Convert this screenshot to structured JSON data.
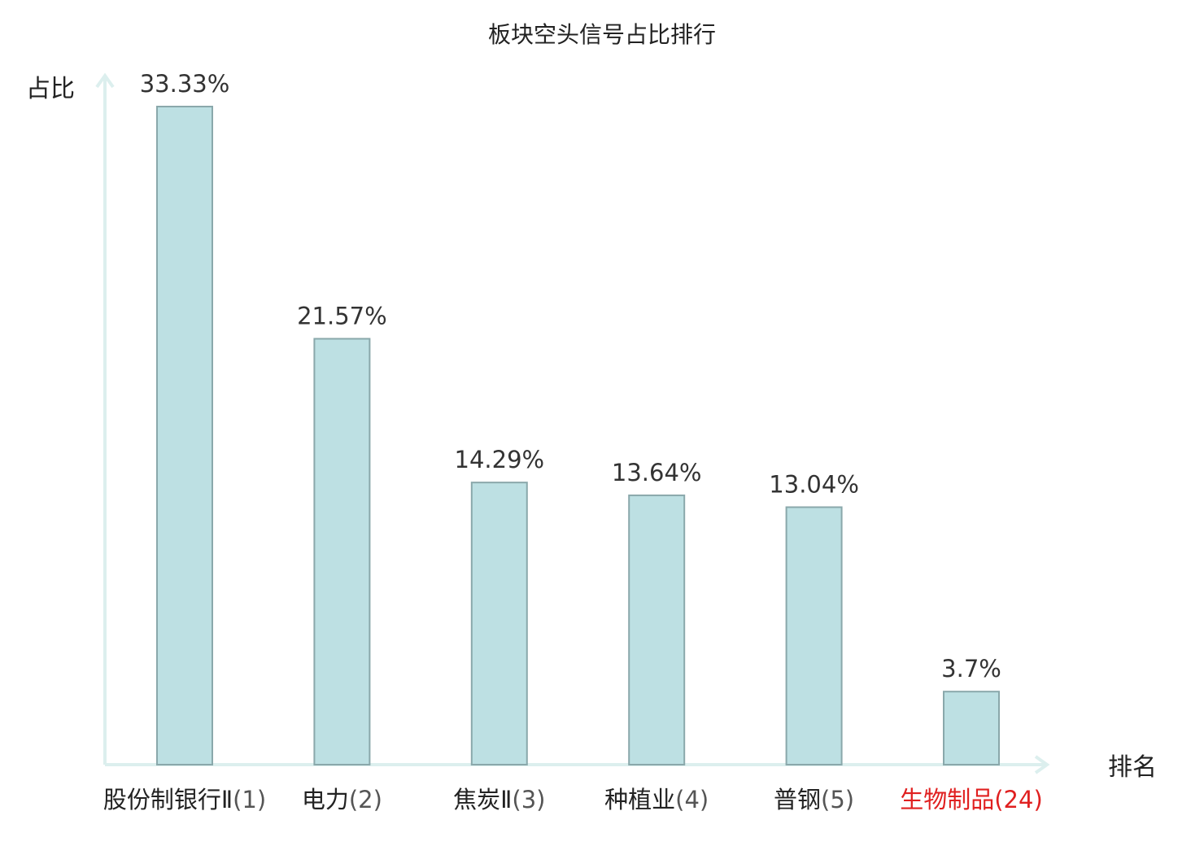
{
  "chart_data": {
    "type": "bar",
    "title": "板块空头信号占比排行",
    "ylabel": "占比",
    "xlabel": "排名",
    "ylim": [
      0,
      35
    ],
    "grid": false,
    "legend": "none",
    "categories": [
      {
        "name": "股份制银行Ⅱ",
        "rank": "(1)",
        "highlight": false
      },
      {
        "name": "电力",
        "rank": "(2)",
        "highlight": false
      },
      {
        "name": "焦炭Ⅱ",
        "rank": "(3)",
        "highlight": false
      },
      {
        "name": "种植业",
        "rank": "(4)",
        "highlight": false
      },
      {
        "name": "普钢",
        "rank": "(5)",
        "highlight": false
      },
      {
        "name": "生物制品",
        "rank": "(24)",
        "highlight": true
      }
    ],
    "values": [
      33.33,
      21.57,
      14.29,
      13.64,
      13.04,
      3.7
    ],
    "labels": [
      "33.33%",
      "21.57%",
      "14.29%",
      "13.64%",
      "13.04%",
      "3.7%"
    ],
    "colors": {
      "bar_fill": "#bde0e3",
      "bar_stroke": "#8aa8ab",
      "axis": "#dcefee",
      "highlight_text": "#e02020",
      "text": "#222222",
      "value_text": "#333333"
    }
  }
}
